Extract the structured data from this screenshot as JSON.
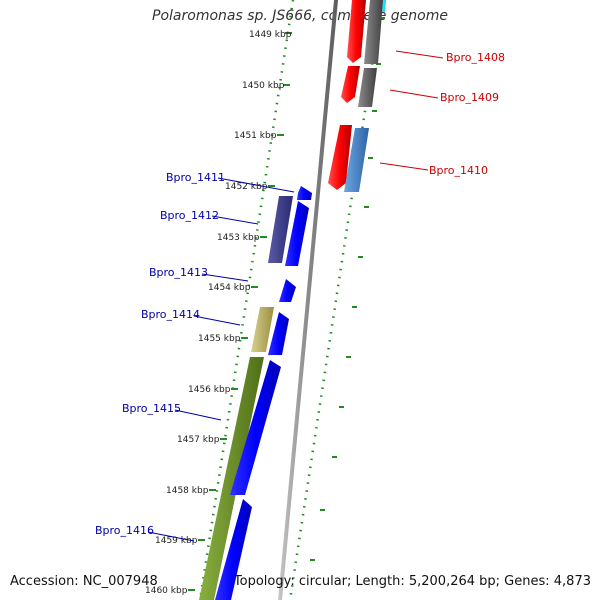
{
  "title": "Polaromonas sp. JS666, complete genome",
  "footer": {
    "accession": "Accession: NC_007948",
    "topology": "Topology: circular; Length: 5,200,264 bp; Genes: 4,873"
  },
  "ticks": [
    "1449 kbp",
    "1450 kbp",
    "1451 kbp",
    "1452 kbp",
    "1453 kbp",
    "1454 kbp",
    "1455 kbp",
    "1456 kbp",
    "1457 kbp",
    "1458 kbp",
    "1459 kbp",
    "1460 kbp"
  ],
  "colors": {
    "reverse_label": "#cc0000",
    "forward_label": "#0000aa",
    "red_cds": "#ff0000",
    "gray_cds": "#666666",
    "cyan_cds": "#00e5ff",
    "steel_cds": "#3d7ec8",
    "blue_cds": "#0000ff",
    "purple_cds": "#3a3a8c",
    "khaki_cds": "#b5aa5a",
    "olive_cds": "#6b8e23",
    "backbone": "#8a8a8a",
    "tick_green": "#228b22"
  },
  "labels": {
    "reverse": [
      "Bpro_1408",
      "Bpro_1409",
      "Bpro_1410"
    ],
    "forward": [
      "Bpro_1411",
      "Bpro_1412",
      "Bpro_1413",
      "Bpro_1414",
      "Bpro_1415",
      "Bpro_1416"
    ]
  }
}
